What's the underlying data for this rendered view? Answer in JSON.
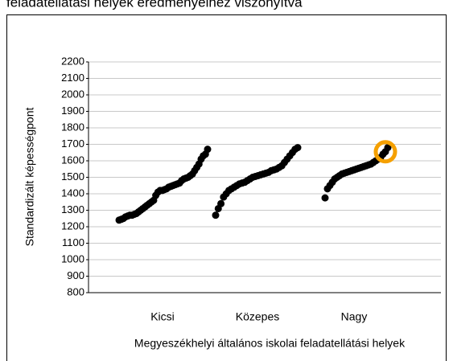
{
  "chart_data": {
    "type": "strip",
    "title": "feladatellátási helyek eredményeihez viszonyítva",
    "y_label": "Standardizált képességpont",
    "x_label": "Megyeszékhelyi általános iskolai feladatellátási helyek",
    "categories": [
      "Kicsi",
      "Közepes",
      "Nagy"
    ],
    "color": "#000000",
    "values": [
      [
        1240,
        1245,
        1250,
        1260,
        1265,
        1270,
        1270,
        1275,
        1280,
        1290,
        1300,
        1310,
        1320,
        1330,
        1340,
        1350,
        1360,
        1390,
        1410,
        1420,
        1420,
        1425,
        1430,
        1440,
        1445,
        1450,
        1455,
        1460,
        1465,
        1480,
        1490,
        1495,
        1500,
        1510,
        1520,
        1540,
        1560,
        1580,
        1610,
        1630,
        1640,
        1670
      ],
      [
        1270,
        1310,
        1340,
        1380,
        1400,
        1420,
        1430,
        1440,
        1450,
        1460,
        1465,
        1470,
        1480,
        1490,
        1500,
        1505,
        1510,
        1515,
        1520,
        1525,
        1530,
        1540,
        1545,
        1550,
        1560,
        1570,
        1590,
        1610,
        1630,
        1650,
        1670,
        1680
      ],
      [
        1375,
        1430,
        1450,
        1470,
        1490,
        1500,
        1510,
        1520,
        1525,
        1530,
        1535,
        1540,
        1545,
        1550,
        1555,
        1560,
        1565,
        1570,
        1575,
        1580,
        1590,
        1600,
        1610,
        1620,
        1640,
        1655,
        1680
      ]
    ],
    "highlight": {
      "category": "Nagy",
      "value": 1655,
      "color": "#f5a000"
    },
    "ylim": [
      800,
      2200
    ],
    "yticks": [
      800,
      900,
      1000,
      1100,
      1200,
      1300,
      1400,
      1500,
      1600,
      1700,
      1800,
      1900,
      2000,
      2100,
      2200
    ],
    "grid": true
  }
}
